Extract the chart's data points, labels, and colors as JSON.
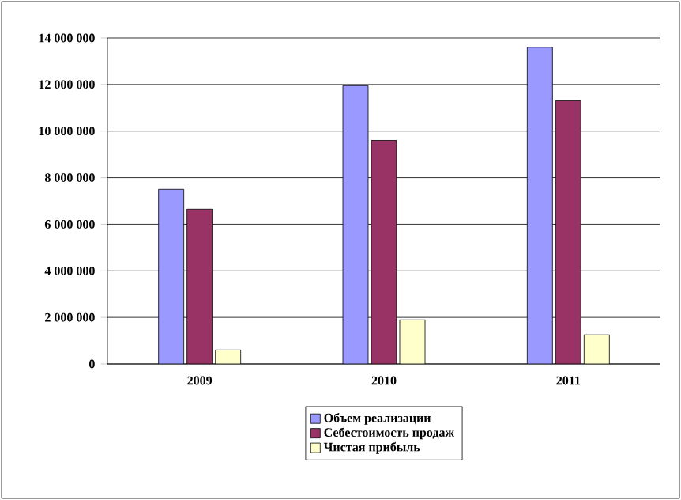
{
  "chart_data": {
    "type": "bar",
    "categories": [
      "2009",
      "2010",
      "2011"
    ],
    "series": [
      {
        "name": "Объем реализации",
        "color": "#9999ff",
        "values": [
          7500000,
          11950000,
          13600000
        ]
      },
      {
        "name": "Себестоимость продаж",
        "color": "#993366",
        "values": [
          6650000,
          9600000,
          11300000
        ]
      },
      {
        "name": "Чистая прибыль",
        "color": "#ffffcc",
        "values": [
          600000,
          1900000,
          1250000
        ]
      }
    ],
    "ylim": [
      0,
      14000000
    ],
    "yticks": [
      {
        "value": 0,
        "label": "0"
      },
      {
        "value": 2000000,
        "label": "2 000 000"
      },
      {
        "value": 4000000,
        "label": "4 000 000"
      },
      {
        "value": 6000000,
        "label": "6 000 000"
      },
      {
        "value": 8000000,
        "label": "8 000 000"
      },
      {
        "value": 10000000,
        "label": "10 000 000"
      },
      {
        "value": 12000000,
        "label": "12 000 000"
      },
      {
        "value": 14000000,
        "label": "14 000 000"
      }
    ],
    "grid": "y",
    "legend": "bottom"
  }
}
